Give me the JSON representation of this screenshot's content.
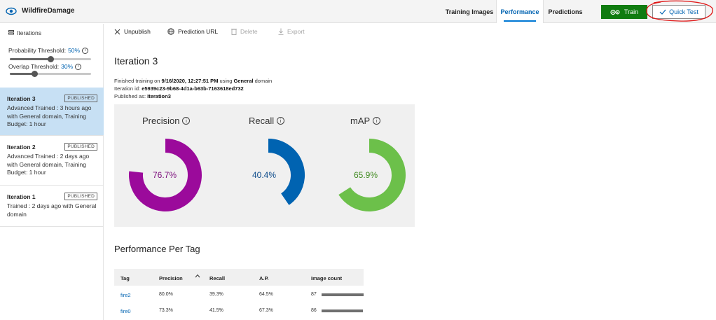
{
  "app": {
    "title": "WildfireDamage"
  },
  "nav": {
    "tabs": [
      {
        "label": "Training Images"
      },
      {
        "label": "Performance"
      },
      {
        "label": "Predictions"
      }
    ],
    "train_label": "Train",
    "quick_test_label": "Quick Test"
  },
  "sidebar": {
    "header": "Iterations",
    "probability": {
      "label": "Probability Threshold:",
      "value": "50%",
      "fraction": 0.5
    },
    "overlap": {
      "label": "Overlap Threshold:",
      "value": "30%",
      "fraction": 0.3
    },
    "iterations": [
      {
        "name": "Iteration 3",
        "badge": "PUBLISHED",
        "desc": "Advanced Trained : 3 hours ago with General domain, Training Budget: 1 hour"
      },
      {
        "name": "Iteration 2",
        "badge": "PUBLISHED",
        "desc": "Advanced Trained : 2 days ago with General domain, Training Budget: 1 hour"
      },
      {
        "name": "Iteration 1",
        "badge": "PUBLISHED",
        "desc": "Trained : 2 days ago with General domain"
      }
    ]
  },
  "toolbar": {
    "unpublish": "Unpublish",
    "prediction_url": "Prediction URL",
    "delete": "Delete",
    "export": "Export"
  },
  "main": {
    "title": "Iteration 3",
    "finished_prefix": "Finished training on ",
    "finished_date": "9/16/2020, 12:27:51 PM",
    "finished_mid": " using ",
    "finished_domain": "General",
    "finished_suffix": " domain",
    "iter_id_label": "Iteration id: ",
    "iter_id": "e5939c23-9b68-4d1a-b63b-7163618ed732",
    "published_label": "Published as: ",
    "published_name": "Iteration3"
  },
  "metrics": [
    {
      "label": "Precision",
      "value": "76.7%",
      "fraction": 0.767,
      "color": "#9b0a9b"
    },
    {
      "label": "Recall",
      "value": "40.4%",
      "fraction": 0.404,
      "color": "#0063b1"
    },
    {
      "label": "mAP",
      "value": "65.9%",
      "fraction": 0.659,
      "color": "#6cc04a"
    }
  ],
  "perf_table": {
    "title": "Performance Per Tag",
    "headers": {
      "tag": "Tag",
      "precision": "Precision",
      "recall": "Recall",
      "ap": "A.P.",
      "count": "Image count"
    },
    "rows": [
      {
        "tag": "fire2",
        "precision": "80.0%",
        "recall": "39.3%",
        "ap": "64.5%",
        "count": "87",
        "count_value": 87
      },
      {
        "tag": "fire0",
        "precision": "73.3%",
        "recall": "41.5%",
        "ap": "67.3%",
        "count": "86",
        "count_value": 86
      }
    ]
  }
}
